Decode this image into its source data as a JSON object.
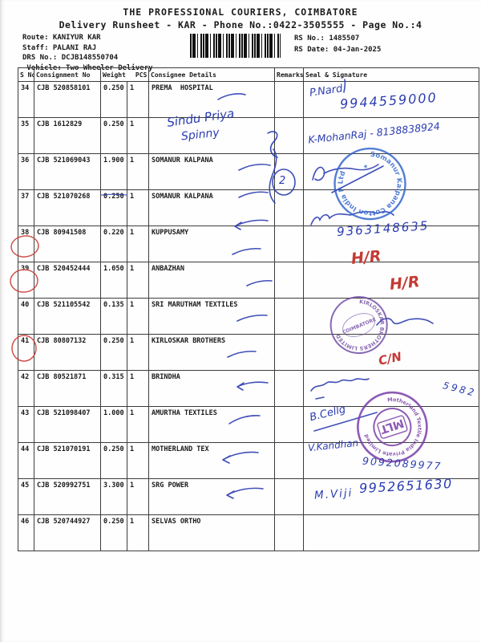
{
  "page": {
    "title": "THE PROFESSIONAL COURIERS, COIMBATORE",
    "subtitle": "Delivery Runsheet - KAR - Phone No.:0422-3505555 - Page No.:4"
  },
  "meta": {
    "route": "Route: KANIYUR KAR",
    "staff": "Staff: PALANI RAJ",
    "drs": "DRS No.: DCJB148550704",
    "vehicle": " Vehicle: Two Wheeler Delivery",
    "rs_no": "RS No.: 1485507",
    "rs_date": "RS Date: 04-Jan-2025"
  },
  "table": {
    "columns": [
      "S No",
      "Consignment No",
      "Weight",
      "PCS",
      "Consignee Details",
      "Remarks",
      "Seal & Signature"
    ],
    "rows": [
      {
        "sno": "34",
        "consignment": "CJB 520858101",
        "weight": "0.250",
        "pcs": "1",
        "consignee": "PREMA  HOSPITAL",
        "remarks": "",
        "seal": ""
      },
      {
        "sno": "35",
        "consignment": "CJB 1612829",
        "weight": "0.250",
        "pcs": "1",
        "consignee": "",
        "remarks": "",
        "seal": ""
      },
      {
        "sno": "36",
        "consignment": "CJB 521069043",
        "weight": "1.900",
        "pcs": "1",
        "consignee": "SOMANUR KALPANA",
        "remarks": "",
        "seal": ""
      },
      {
        "sno": "37",
        "consignment": "CJB 521070268",
        "weight": "0.250",
        "pcs": "1",
        "consignee": "SOMANUR KALPANA",
        "remarks": "",
        "seal": ""
      },
      {
        "sno": "38",
        "consignment": "CJB 80941508",
        "weight": "0.220",
        "pcs": "1",
        "consignee": "KUPPUSAMY",
        "remarks": "",
        "seal": ""
      },
      {
        "sno": "39",
        "consignment": "CJB 520452444",
        "weight": "1.050",
        "pcs": "1",
        "consignee": "ANBAZHAN",
        "remarks": "",
        "seal": ""
      },
      {
        "sno": "40",
        "consignment": "CJB 521105542",
        "weight": "0.135",
        "pcs": "1",
        "consignee": "SRI MARUTHAM TEXTILES",
        "remarks": "",
        "seal": ""
      },
      {
        "sno": "41",
        "consignment": "CJB 80807132",
        "weight": "0.250",
        "pcs": "1",
        "consignee": "KIRLOSKAR BROTHERS",
        "remarks": "",
        "seal": ""
      },
      {
        "sno": "42",
        "consignment": "CJB 80521871",
        "weight": "0.315",
        "pcs": "1",
        "consignee": "BRINDHA",
        "remarks": "",
        "seal": ""
      },
      {
        "sno": "43",
        "consignment": "CJB 521098407",
        "weight": "1.000",
        "pcs": "1",
        "consignee": "AMURTHA TEXTILES",
        "remarks": "",
        "seal": ""
      },
      {
        "sno": "44",
        "consignment": "CJB 521070191",
        "weight": "0.250",
        "pcs": "1",
        "consignee": "MOTHERLAND TEX",
        "remarks": "",
        "seal": ""
      },
      {
        "sno": "45",
        "consignment": "CJB 520992751",
        "weight": "3.300",
        "pcs": "1",
        "consignee": "SRG POWER",
        "remarks": "",
        "seal": ""
      },
      {
        "sno": "46",
        "consignment": "CJB 520744927",
        "weight": "0.250",
        "pcs": "1",
        "consignee": "SELVAS ORTHO",
        "remarks": "",
        "seal": ""
      }
    ]
  },
  "ink": {
    "hw35_line1": "Sindu Priya",
    "hw35_line2": "Spinny",
    "hw37_count": "2",
    "sig34_name": "P.Nard",
    "sig34_phone": "9944559000",
    "sig35_line": "K-MohanRaj - 8138838924",
    "sig38_phone": "9363148635",
    "sig39_mark": "H/R",
    "sig40_mark": "H/R",
    "sig42_mark": "C/N",
    "sig43_num": "5982",
    "sig44_name": "B.Cellg",
    "sig45_name": "V.Kandhan",
    "sig45_phone": "9092089977",
    "sig46_name": "M.Viji",
    "sig46_phone": "9952651630"
  },
  "stamps": {
    "somanur_arc": "Somanur Kalpana Cotton India P Ltd",
    "somanur_star": "★",
    "kirloskar_arc": "KIRLOSKAR BROTHERS LIMITED",
    "kirloskar_inner": "COIMBATORE",
    "mlt_arc": "Motherland Textile India Private Limited",
    "mlt_center": "MLT"
  }
}
